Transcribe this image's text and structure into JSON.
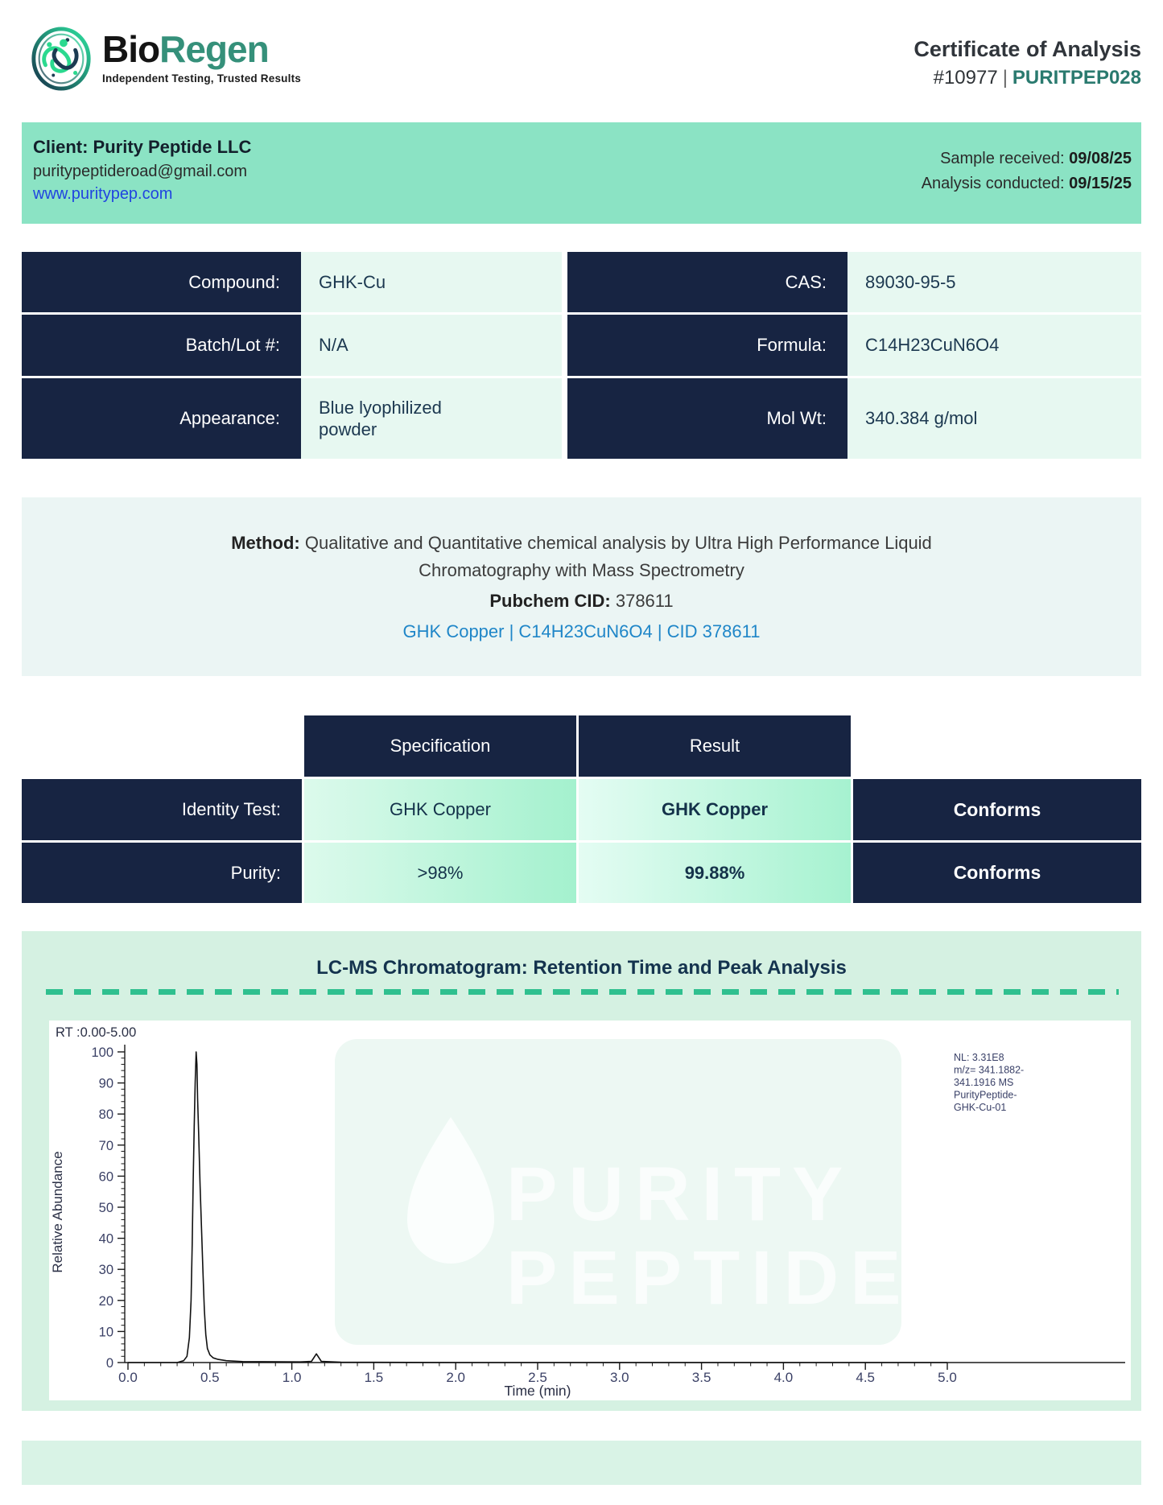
{
  "header": {
    "brand_bio": "Bio",
    "brand_regen": "Regen",
    "tagline": "Independent Testing, Trusted Results",
    "title": "Certificate of Analysis",
    "report_number": "#10977",
    "separator": "|",
    "report_code": "PURITPEP028"
  },
  "client_bar": {
    "client_line": "Client: Purity Peptide LLC",
    "email": "puritypeptideroad@gmail.com",
    "website": "www.puritypep.com",
    "received_label": "Sample received: ",
    "received_date": "09/08/25",
    "conducted_label": "Analysis conducted: ",
    "conducted_date": "09/15/25"
  },
  "compound_table": {
    "left": [
      {
        "label": "Compound:",
        "value": "GHK-Cu"
      },
      {
        "label": "Batch/Lot #:",
        "value": "N/A"
      },
      {
        "label": "Appearance:",
        "value": "Blue lyophilized powder"
      }
    ],
    "right": [
      {
        "label": "CAS:",
        "value": "89030-95-5"
      },
      {
        "label": "Formula:",
        "value": "C14H23CuN6O4"
      },
      {
        "label": "Mol Wt:",
        "value": "340.384 g/mol"
      }
    ]
  },
  "method": {
    "label": "Method: ",
    "description": "Qualitative and Quantitative chemical analysis by Ultra High Performance Liquid Chromatography with Mass Spectrometry",
    "pubchem_label": "Pubchem CID: ",
    "pubchem_value": "378611",
    "link_text": "GHK Copper | C14H23CuN6O4 | CID 378611"
  },
  "results_table": {
    "spec_header": "Specification",
    "result_header": "Result",
    "rows": [
      {
        "label": "Identity Test:",
        "specification": "GHK Copper",
        "result": "GHK Copper",
        "status": "Conforms"
      },
      {
        "label": "Purity:",
        "specification": ">98%",
        "result": "99.88%",
        "status": "Conforms"
      }
    ]
  },
  "chromatogram": {
    "section_title": "LC-MS Chromatogram: Retention Time and Peak Analysis",
    "rt_range_label": "RT :0.00-5.00",
    "annotation_lines": [
      "NL: 3.31E8",
      "m/z= 341.1882-",
      "341.1916 MS",
      "PurityPeptide-",
      "GHK-Cu-01"
    ],
    "watermark_line1": "PURITY",
    "watermark_line2": "PEPTIDE",
    "chart_data": {
      "type": "line",
      "title": "LC-MS Chromatogram: Retention Time and Peak Analysis",
      "xlabel": "Time (min)",
      "ylabel": "Relative Abundance",
      "xlim": [
        0,
        5
      ],
      "ylim": [
        0,
        100
      ],
      "x_major_tick_step": 0.5,
      "x_minor_tick_step": 0.1,
      "y_major_tick_step": 10,
      "y_minor_tick_step": 2,
      "x_tick_labels": [
        "0.0",
        "0.5",
        "1.0",
        "1.5",
        "2.0",
        "2.5",
        "3.0",
        "3.5",
        "4.0",
        "4.5",
        "5.0"
      ],
      "y_tick_labels": [
        "0",
        "10",
        "20",
        "30",
        "40",
        "50",
        "60",
        "70",
        "80",
        "90",
        "100"
      ],
      "main_peak_rt": 0.42,
      "main_peak_height": 100,
      "minor_peak_rt": 1.15,
      "minor_peak_height": 2.8,
      "points": [
        [
          0,
          0
        ],
        [
          0.3,
          0
        ],
        [
          0.34,
          0.6
        ],
        [
          0.36,
          2
        ],
        [
          0.375,
          8
        ],
        [
          0.385,
          20
        ],
        [
          0.392,
          38
        ],
        [
          0.398,
          58
        ],
        [
          0.404,
          76
        ],
        [
          0.41,
          90
        ],
        [
          0.416,
          100
        ],
        [
          0.421,
          96
        ],
        [
          0.425,
          85
        ],
        [
          0.431,
          74
        ],
        [
          0.44,
          57
        ],
        [
          0.449,
          43
        ],
        [
          0.458,
          29
        ],
        [
          0.466,
          17
        ],
        [
          0.475,
          9
        ],
        [
          0.485,
          4.5
        ],
        [
          0.5,
          2.5
        ],
        [
          0.52,
          1.5
        ],
        [
          0.55,
          1
        ],
        [
          0.6,
          0.6
        ],
        [
          0.7,
          0.3
        ],
        [
          1.05,
          0.2
        ],
        [
          1.12,
          0.4
        ],
        [
          1.15,
          2.8
        ],
        [
          1.18,
          0.4
        ],
        [
          1.3,
          0.1
        ],
        [
          2,
          0
        ],
        [
          3,
          0
        ],
        [
          4,
          0
        ],
        [
          5,
          0
        ]
      ]
    }
  },
  "colors": {
    "navy": "#172442",
    "mint_bar": "#8BE3C4",
    "cell_mint": "#E7F8F1",
    "method_bg": "#EBF5F4",
    "panel_mint": "#D5F1E2",
    "strip_mint": "#D9F3E6",
    "accent_teal": "#2FC08F",
    "brand_green": "#35907A",
    "code_teal": "#2A7A6F",
    "link_blue": "#2044E0",
    "pubchem_link_blue": "#1F86C8"
  }
}
